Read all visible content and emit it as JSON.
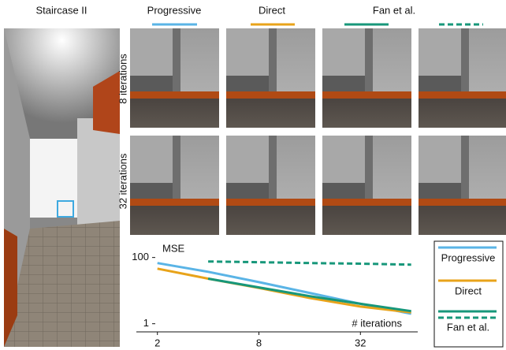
{
  "figure": {
    "scene_title": "Staircase II",
    "row_labels": [
      "8 iterations",
      "32 iterations"
    ]
  },
  "chart_data": {
    "type": "line",
    "y_label": "MSE",
    "x_label": "# iterations",
    "x": [
      2,
      4,
      8,
      16,
      32,
      64
    ],
    "series": [
      {
        "name": "Progressive",
        "color": "#5ab4e6",
        "values": [
          68,
          37,
          18,
          8.5,
          4,
          2
        ]
      },
      {
        "name": "Direct",
        "color": "#e8a31a",
        "values": [
          46,
          23,
          12,
          6,
          3.3,
          2.2
        ]
      },
      {
        "name": "Fan et al.",
        "color": "#17977a",
        "values": [
          null,
          23,
          12.5,
          6.8,
          4,
          2.4
        ]
      },
      {
        "color": "#17977a",
        "dashed": true,
        "values": [
          null,
          76,
          72,
          68,
          65,
          61
        ]
      }
    ],
    "xscale": "log",
    "yscale": "log",
    "xlim": [
      1.5,
      70
    ],
    "ylim": [
      0.6,
      200
    ],
    "xticks": [
      2,
      8,
      32
    ],
    "yticks": [
      1,
      100
    ]
  }
}
